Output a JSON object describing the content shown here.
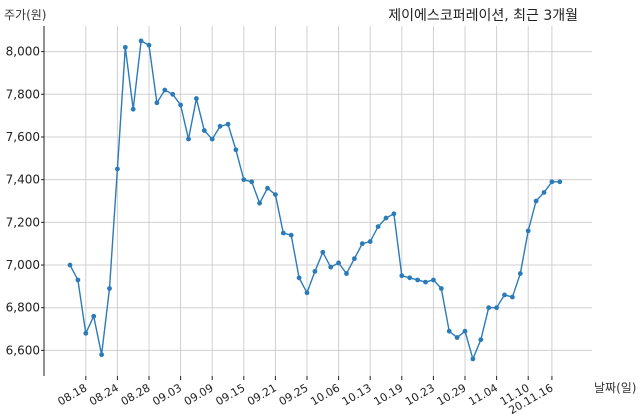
{
  "chart_data": {
    "type": "line",
    "title": "제이에스코퍼레이션, 최근 3개월",
    "ylabel": "주가(원)",
    "xlabel": "날짜(일)",
    "ylim": [
      6480,
      8120
    ],
    "yticks": [
      6600,
      6800,
      7000,
      7200,
      7400,
      7600,
      7800,
      8000
    ],
    "ytick_labels": [
      "6,600",
      "6,800",
      "7,000",
      "7,200",
      "7,400",
      "7,600",
      "7,800",
      "8,000"
    ],
    "xtick_labels": [
      "08.18",
      "08.24",
      "08.28",
      "09.03",
      "09.09",
      "09.15",
      "09.21",
      "09.25",
      "10.06",
      "10.13",
      "10.19",
      "10.23",
      "10.29",
      "11.04",
      "11.10",
      "20.11.16"
    ],
    "xtick_index": [
      2,
      6,
      10,
      14,
      18,
      22,
      26,
      30,
      34,
      38,
      42,
      46,
      50,
      54,
      58,
      61
    ],
    "grid": true,
    "series": [
      {
        "color": "#2b7bb9",
        "values": [
          7000,
          6930,
          6680,
          6760,
          6580,
          6890,
          7450,
          8020,
          7730,
          8050,
          8030,
          7760,
          7820,
          7800,
          7750,
          7590,
          7780,
          7630,
          7590,
          7650,
          7660,
          7540,
          7400,
          7390,
          7290,
          7360,
          7330,
          7150,
          7140,
          6940,
          6870,
          6970,
          7060,
          6990,
          7010,
          6960,
          7030,
          7100,
          7110,
          7180,
          7220,
          7240,
          6950,
          6940,
          6930,
          6920,
          6930,
          6890,
          6690,
          6660,
          6690,
          6560,
          6650,
          6800,
          6800,
          6860,
          6850,
          6960,
          7160,
          7300,
          7340,
          7390,
          7390
        ]
      }
    ]
  }
}
